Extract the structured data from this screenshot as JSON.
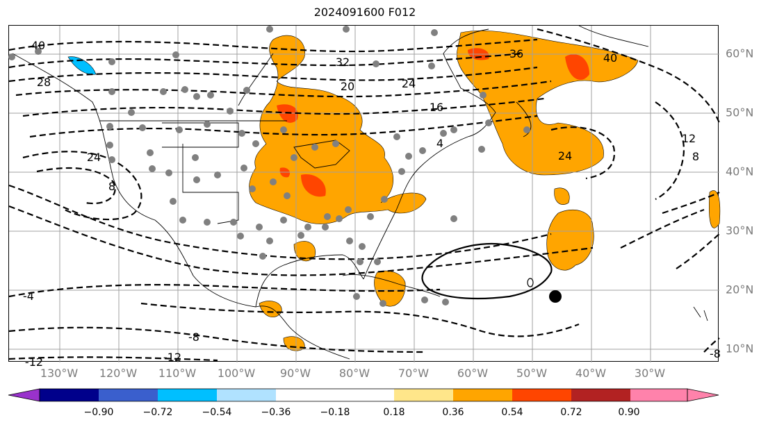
{
  "title": "2024091600 F012",
  "lon_labels": [
    "130°W",
    "120°W",
    "110°W",
    "100°W",
    "90°W",
    "80°W",
    "70°W",
    "60°W",
    "50°W",
    "40°W",
    "30°W"
  ],
  "lat_labels": [
    "60°N",
    "50°N",
    "40°N",
    "30°N",
    "20°N",
    "10°N"
  ],
  "contour_labels": [
    "40",
    "32",
    "36",
    "40",
    "24",
    "20",
    "16",
    "28",
    "24",
    "24",
    "4",
    "12",
    "8",
    "8",
    "-4",
    "-8",
    "-12",
    "-12",
    "-8"
  ],
  "colorbar": {
    "ticks": [
      "−0.90",
      "−0.72",
      "−0.54",
      "−0.36",
      "−0.18",
      "0.18",
      "0.36",
      "0.54",
      "0.72",
      "0.90"
    ],
    "colors": [
      "#9932cc",
      "#00008b",
      "#3a5fcd",
      "#00bfff",
      "#b0e2ff",
      "#ffffff",
      "#ffe68a",
      "#ffa500",
      "#ff4500",
      "#b22222",
      "#ff82ab"
    ]
  },
  "shading_colors": {
    "orange": "#ffa500",
    "red": "#ff4500",
    "cyan": "#00bfff"
  }
}
